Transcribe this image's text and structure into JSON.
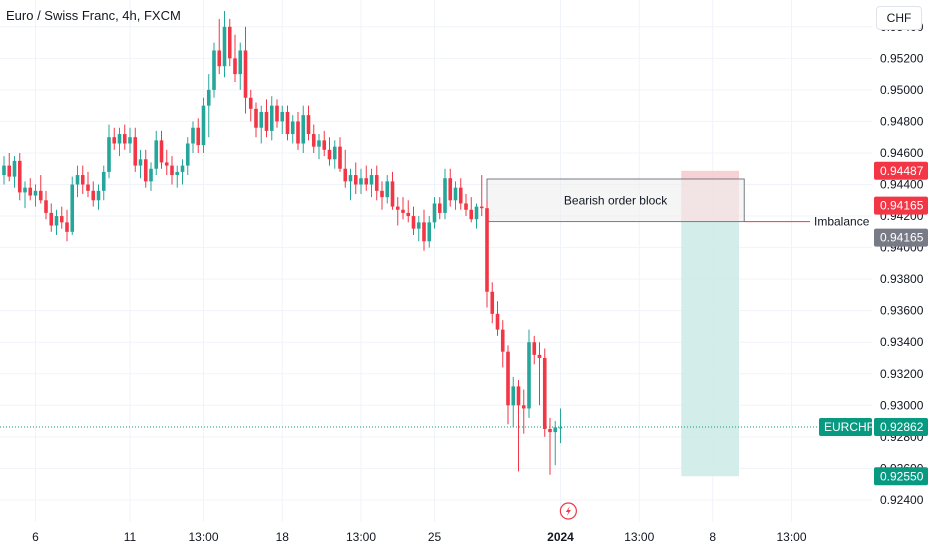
{
  "header": {
    "title": "Euro / Swiss Franc, 4h, FXCM",
    "currency_button": "CHF"
  },
  "colors": {
    "up": "#26a69a",
    "down": "#f23645",
    "grid": "#f0f3fa",
    "axis_text": "#131722",
    "current_price_line": "#089981",
    "short_zone_stop": "#f7c9cc",
    "short_zone_target": "#cdebe8",
    "order_block_fill": "#eeeeee",
    "order_block_border": "#787b86"
  },
  "chart_data": {
    "type": "candlestick",
    "symbol": "EURCHF",
    "timeframe": "4h",
    "y_ticks": [
      0.924,
      0.926,
      0.928,
      0.93,
      0.932,
      0.934,
      0.936,
      0.938,
      0.94,
      0.942,
      0.944,
      0.946,
      0.948,
      0.95,
      0.952,
      0.954
    ],
    "y_tick_labels": [
      "0.92400",
      "0.92600",
      "0.92800",
      "0.93000",
      "0.93200",
      "0.93400",
      "0.93600",
      "0.93800",
      "0.94000",
      "0.94200",
      "0.94400",
      "0.94600",
      "0.94800",
      "0.95000",
      "0.95200",
      "0.95400"
    ],
    "ylim": [
      0.9226,
      0.9557
    ],
    "x_ticks": [
      {
        "label": "6",
        "bar": 6,
        "bold": false
      },
      {
        "label": "11",
        "bar": 24,
        "bold": false
      },
      {
        "label": "13:00",
        "bar": 38,
        "bold": false
      },
      {
        "label": "18",
        "bar": 53,
        "bold": false
      },
      {
        "label": "13:00",
        "bar": 68,
        "bold": false
      },
      {
        "label": "25",
        "bar": 82,
        "bold": false
      },
      {
        "label": "2024",
        "bar": 106,
        "bold": true
      },
      {
        "label": "13:00",
        "bar": 121,
        "bold": false
      },
      {
        "label": "8",
        "bar": 135,
        "bold": false
      },
      {
        "label": "13:00",
        "bar": 150,
        "bold": false
      }
    ],
    "candles": [
      [
        0.9446,
        0.9458,
        0.944,
        0.9452
      ],
      [
        0.9452,
        0.946,
        0.9442,
        0.9445
      ],
      [
        0.9445,
        0.9458,
        0.9438,
        0.9455
      ],
      [
        0.9455,
        0.946,
        0.943,
        0.9435
      ],
      [
        0.9435,
        0.9442,
        0.9425,
        0.9438
      ],
      [
        0.9438,
        0.9444,
        0.943,
        0.9433
      ],
      [
        0.9433,
        0.944,
        0.9426,
        0.9436
      ],
      [
        0.9436,
        0.9446,
        0.9428,
        0.943
      ],
      [
        0.943,
        0.9436,
        0.9418,
        0.9422
      ],
      [
        0.9422,
        0.9428,
        0.941,
        0.9414
      ],
      [
        0.9414,
        0.9424,
        0.9408,
        0.942
      ],
      [
        0.942,
        0.9426,
        0.9412,
        0.9416
      ],
      [
        0.9416,
        0.9424,
        0.9404,
        0.941
      ],
      [
        0.941,
        0.9445,
        0.9408,
        0.944
      ],
      [
        0.944,
        0.9452,
        0.9432,
        0.9446
      ],
      [
        0.9446,
        0.9452,
        0.9434,
        0.944
      ],
      [
        0.944,
        0.9448,
        0.9432,
        0.9436
      ],
      [
        0.9436,
        0.9442,
        0.9426,
        0.943
      ],
      [
        0.943,
        0.944,
        0.9424,
        0.9436
      ],
      [
        0.9436,
        0.9452,
        0.943,
        0.9448
      ],
      [
        0.9448,
        0.9478,
        0.9444,
        0.947
      ],
      [
        0.947,
        0.9476,
        0.9462,
        0.9466
      ],
      [
        0.9466,
        0.9476,
        0.9458,
        0.9472
      ],
      [
        0.9472,
        0.9478,
        0.9462,
        0.9466
      ],
      [
        0.9466,
        0.9476,
        0.946,
        0.947
      ],
      [
        0.947,
        0.9476,
        0.9448,
        0.9452
      ],
      [
        0.9452,
        0.9462,
        0.9444,
        0.9456
      ],
      [
        0.9456,
        0.9462,
        0.9438,
        0.9442
      ],
      [
        0.9442,
        0.9454,
        0.9436,
        0.945
      ],
      [
        0.945,
        0.9474,
        0.9446,
        0.9468
      ],
      [
        0.9468,
        0.9474,
        0.945,
        0.9454
      ],
      [
        0.9454,
        0.9462,
        0.9446,
        0.9452
      ],
      [
        0.9452,
        0.9458,
        0.944,
        0.9446
      ],
      [
        0.9446,
        0.9452,
        0.9438,
        0.9448
      ],
      [
        0.9448,
        0.9456,
        0.944,
        0.9452
      ],
      [
        0.9452,
        0.947,
        0.9446,
        0.9466
      ],
      [
        0.9466,
        0.948,
        0.946,
        0.9476
      ],
      [
        0.9476,
        0.9482,
        0.946,
        0.9465
      ],
      [
        0.9465,
        0.9495,
        0.946,
        0.949
      ],
      [
        0.949,
        0.951,
        0.947,
        0.95
      ],
      [
        0.95,
        0.953,
        0.9495,
        0.9525
      ],
      [
        0.9525,
        0.9545,
        0.951,
        0.9515
      ],
      [
        0.9515,
        0.955,
        0.9508,
        0.954
      ],
      [
        0.954,
        0.9545,
        0.9515,
        0.952
      ],
      [
        0.952,
        0.9535,
        0.9505,
        0.951
      ],
      [
        0.951,
        0.953,
        0.95,
        0.9525
      ],
      [
        0.9525,
        0.954,
        0.9485,
        0.9495
      ],
      [
        0.9495,
        0.95,
        0.948,
        0.9488
      ],
      [
        0.9488,
        0.9492,
        0.947,
        0.9476
      ],
      [
        0.9476,
        0.949,
        0.9466,
        0.9486
      ],
      [
        0.9486,
        0.9494,
        0.947,
        0.9474
      ],
      [
        0.9474,
        0.9496,
        0.9468,
        0.949
      ],
      [
        0.949,
        0.9494,
        0.9476,
        0.948
      ],
      [
        0.948,
        0.949,
        0.9472,
        0.9486
      ],
      [
        0.9486,
        0.949,
        0.9468,
        0.9472
      ],
      [
        0.9472,
        0.9484,
        0.9466,
        0.948
      ],
      [
        0.948,
        0.9486,
        0.9462,
        0.9466
      ],
      [
        0.9466,
        0.949,
        0.946,
        0.9484
      ],
      [
        0.9484,
        0.949,
        0.9468,
        0.9472
      ],
      [
        0.9472,
        0.9478,
        0.946,
        0.9464
      ],
      [
        0.9464,
        0.9472,
        0.9456,
        0.9468
      ],
      [
        0.9468,
        0.9474,
        0.9458,
        0.9462
      ],
      [
        0.9462,
        0.947,
        0.9452,
        0.9456
      ],
      [
        0.9456,
        0.9468,
        0.945,
        0.9464
      ],
      [
        0.9464,
        0.947,
        0.9448,
        0.945
      ],
      [
        0.945,
        0.9462,
        0.9438,
        0.9442
      ],
      [
        0.9442,
        0.945,
        0.943,
        0.9446
      ],
      [
        0.9446,
        0.9454,
        0.9434,
        0.944
      ],
      [
        0.944,
        0.945,
        0.9434,
        0.9444
      ],
      [
        0.9444,
        0.9452,
        0.9436,
        0.944
      ],
      [
        0.944,
        0.945,
        0.9432,
        0.9446
      ],
      [
        0.9446,
        0.9452,
        0.943,
        0.9436
      ],
      [
        0.9436,
        0.9442,
        0.9424,
        0.9432
      ],
      [
        0.9432,
        0.9446,
        0.9428,
        0.9442
      ],
      [
        0.9442,
        0.9448,
        0.9424,
        0.9426
      ],
      [
        0.9426,
        0.9432,
        0.9414,
        0.9424
      ],
      [
        0.9424,
        0.9432,
        0.9418,
        0.9422
      ],
      [
        0.9422,
        0.943,
        0.9416,
        0.942
      ],
      [
        0.942,
        0.9426,
        0.9408,
        0.9412
      ],
      [
        0.9412,
        0.942,
        0.9404,
        0.9416
      ],
      [
        0.9416,
        0.9424,
        0.9398,
        0.9404
      ],
      [
        0.9404,
        0.942,
        0.94,
        0.9416
      ],
      [
        0.9416,
        0.9432,
        0.9412,
        0.9428
      ],
      [
        0.9428,
        0.9432,
        0.9418,
        0.9422
      ],
      [
        0.9422,
        0.945,
        0.9418,
        0.9444
      ],
      [
        0.9444,
        0.945,
        0.9426,
        0.943
      ],
      [
        0.943,
        0.9442,
        0.9424,
        0.9438
      ],
      [
        0.9438,
        0.9444,
        0.9424,
        0.9428
      ],
      [
        0.9428,
        0.9434,
        0.942,
        0.9424
      ],
      [
        0.9424,
        0.9432,
        0.9416,
        0.9418
      ],
      [
        0.9418,
        0.9428,
        0.9412,
        0.9426
      ],
      [
        0.9426,
        0.9446,
        0.942,
        0.9425
      ],
      [
        0.9425,
        0.943,
        0.9362,
        0.9372
      ],
      [
        0.9372,
        0.9378,
        0.9352,
        0.9358
      ],
      [
        0.9358,
        0.9366,
        0.9344,
        0.9348
      ],
      [
        0.9348,
        0.9354,
        0.9324,
        0.9334
      ],
      [
        0.9334,
        0.9338,
        0.9288,
        0.93
      ],
      [
        0.93,
        0.9318,
        0.9286,
        0.9312
      ],
      [
        0.9312,
        0.9316,
        0.9258,
        0.93
      ],
      [
        0.93,
        0.931,
        0.9282,
        0.9298
      ],
      [
        0.9298,
        0.9348,
        0.9292,
        0.934
      ],
      [
        0.934,
        0.9344,
        0.9326,
        0.9332
      ],
      [
        0.9332,
        0.934,
        0.93,
        0.933
      ],
      [
        0.933,
        0.9336,
        0.928,
        0.9285
      ],
      [
        0.9285,
        0.9292,
        0.9256,
        0.9283
      ],
      [
        0.9283,
        0.929,
        0.9262,
        0.9286
      ],
      [
        0.9286,
        0.9298,
        0.9276,
        0.9286
      ]
    ],
    "current_price": 0.92862,
    "order_block": {
      "label": "Bearish order block",
      "top": 0.94435,
      "bottom": 0.94165,
      "start_bar": 92,
      "end_bar": 141
    },
    "imbalance": {
      "label": "Imbalance",
      "price": 0.94165,
      "start_bar": 141,
      "end_bar": 150
    },
    "short_position": {
      "entry": 0.94165,
      "stop": 0.94487,
      "target": 0.9255,
      "start_bar": 129,
      "end_bar": 140
    },
    "price_labels": [
      {
        "text": "0.94487",
        "price": 0.94487,
        "color": "#f23645"
      },
      {
        "text": "0.94165",
        "price": 0.94165,
        "color": "#f23645"
      },
      {
        "text": "0.94165",
        "price": 0.94165,
        "color": "#787b86"
      },
      {
        "text": "0.92862",
        "price": 0.92862,
        "color": "#089981"
      },
      {
        "text": "0.92550",
        "price": 0.9255,
        "color": "#089981"
      }
    ],
    "symbol_tag": "EURCHF",
    "event_marker_icon": "lightning-icon"
  }
}
